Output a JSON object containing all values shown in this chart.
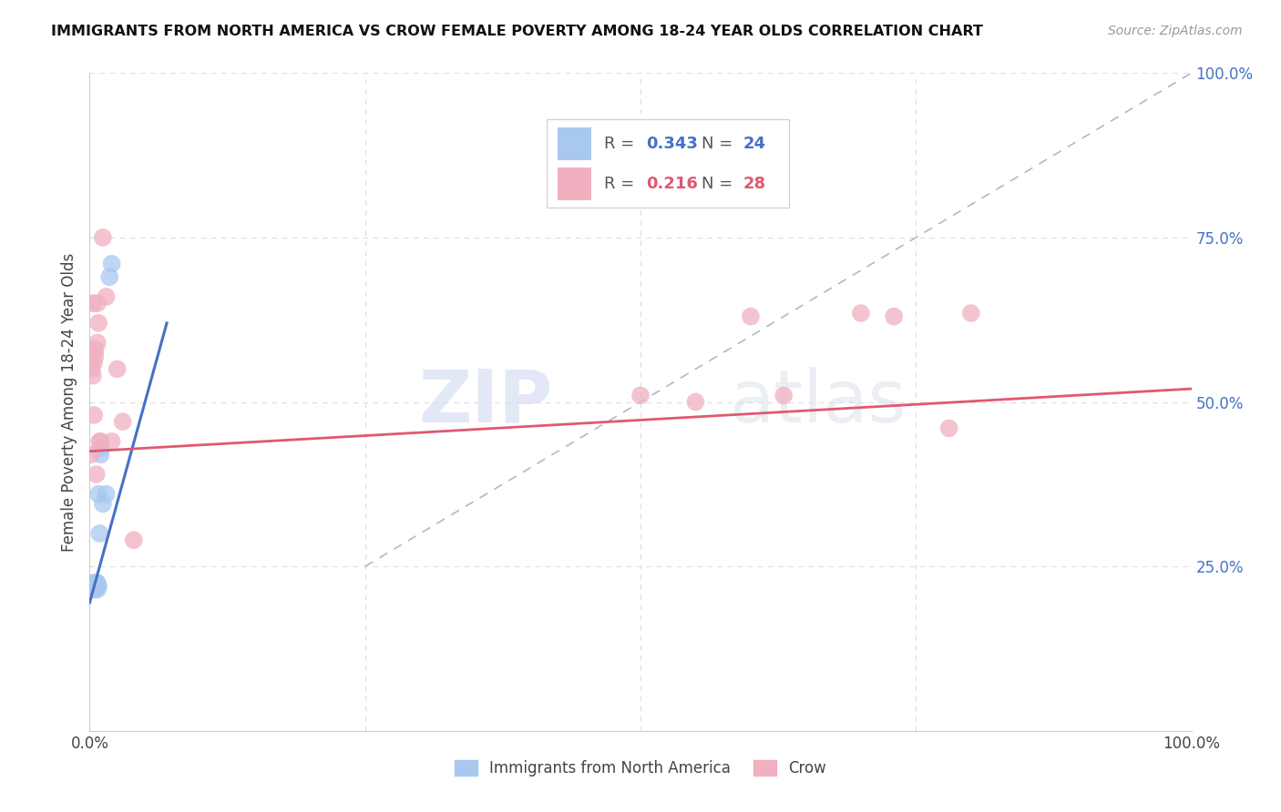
{
  "title": "IMMIGRANTS FROM NORTH AMERICA VS CROW FEMALE POVERTY AMONG 18-24 YEAR OLDS CORRELATION CHART",
  "source": "Source: ZipAtlas.com",
  "ylabel": "Female Poverty Among 18-24 Year Olds",
  "xlim": [
    0,
    1.0
  ],
  "ylim": [
    0,
    1.0
  ],
  "legend_label1": "Immigrants from North America",
  "legend_label2": "Crow",
  "blue_color": "#a8c8f0",
  "pink_color": "#f0b0c0",
  "blue_line_color": "#4472c4",
  "pink_line_color": "#e05870",
  "blue_r_color": "#4472c4",
  "pink_r_color": "#e05870",
  "watermark_zip": "ZIP",
  "watermark_atlas": "atlas",
  "blue_scatter_x": [
    0.001,
    0.002,
    0.002,
    0.003,
    0.003,
    0.004,
    0.004,
    0.005,
    0.005,
    0.005,
    0.006,
    0.006,
    0.007,
    0.007,
    0.007,
    0.008,
    0.008,
    0.009,
    0.01,
    0.01,
    0.012,
    0.015,
    0.018,
    0.02
  ],
  "blue_scatter_y": [
    0.215,
    0.22,
    0.215,
    0.22,
    0.225,
    0.22,
    0.215,
    0.215,
    0.22,
    0.225,
    0.22,
    0.225,
    0.22,
    0.225,
    0.215,
    0.22,
    0.36,
    0.3,
    0.42,
    0.43,
    0.345,
    0.36,
    0.69,
    0.71
  ],
  "pink_scatter_x": [
    0.001,
    0.002,
    0.003,
    0.003,
    0.004,
    0.004,
    0.005,
    0.005,
    0.006,
    0.007,
    0.007,
    0.008,
    0.009,
    0.01,
    0.012,
    0.015,
    0.02,
    0.025,
    0.03,
    0.04,
    0.5,
    0.55,
    0.6,
    0.63,
    0.7,
    0.73,
    0.78,
    0.8
  ],
  "pink_scatter_y": [
    0.42,
    0.55,
    0.54,
    0.65,
    0.48,
    0.56,
    0.57,
    0.58,
    0.39,
    0.59,
    0.65,
    0.62,
    0.44,
    0.44,
    0.75,
    0.66,
    0.44,
    0.55,
    0.47,
    0.29,
    0.51,
    0.5,
    0.63,
    0.51,
    0.635,
    0.63,
    0.46,
    0.635
  ],
  "blue_line_x": [
    0.0,
    0.07
  ],
  "blue_line_y": [
    0.195,
    0.62
  ],
  "pink_line_x": [
    0.0,
    1.0
  ],
  "pink_line_y": [
    0.425,
    0.52
  ],
  "diag_line_x": [
    0.25,
    1.0
  ],
  "diag_line_y": [
    0.25,
    1.0
  ]
}
